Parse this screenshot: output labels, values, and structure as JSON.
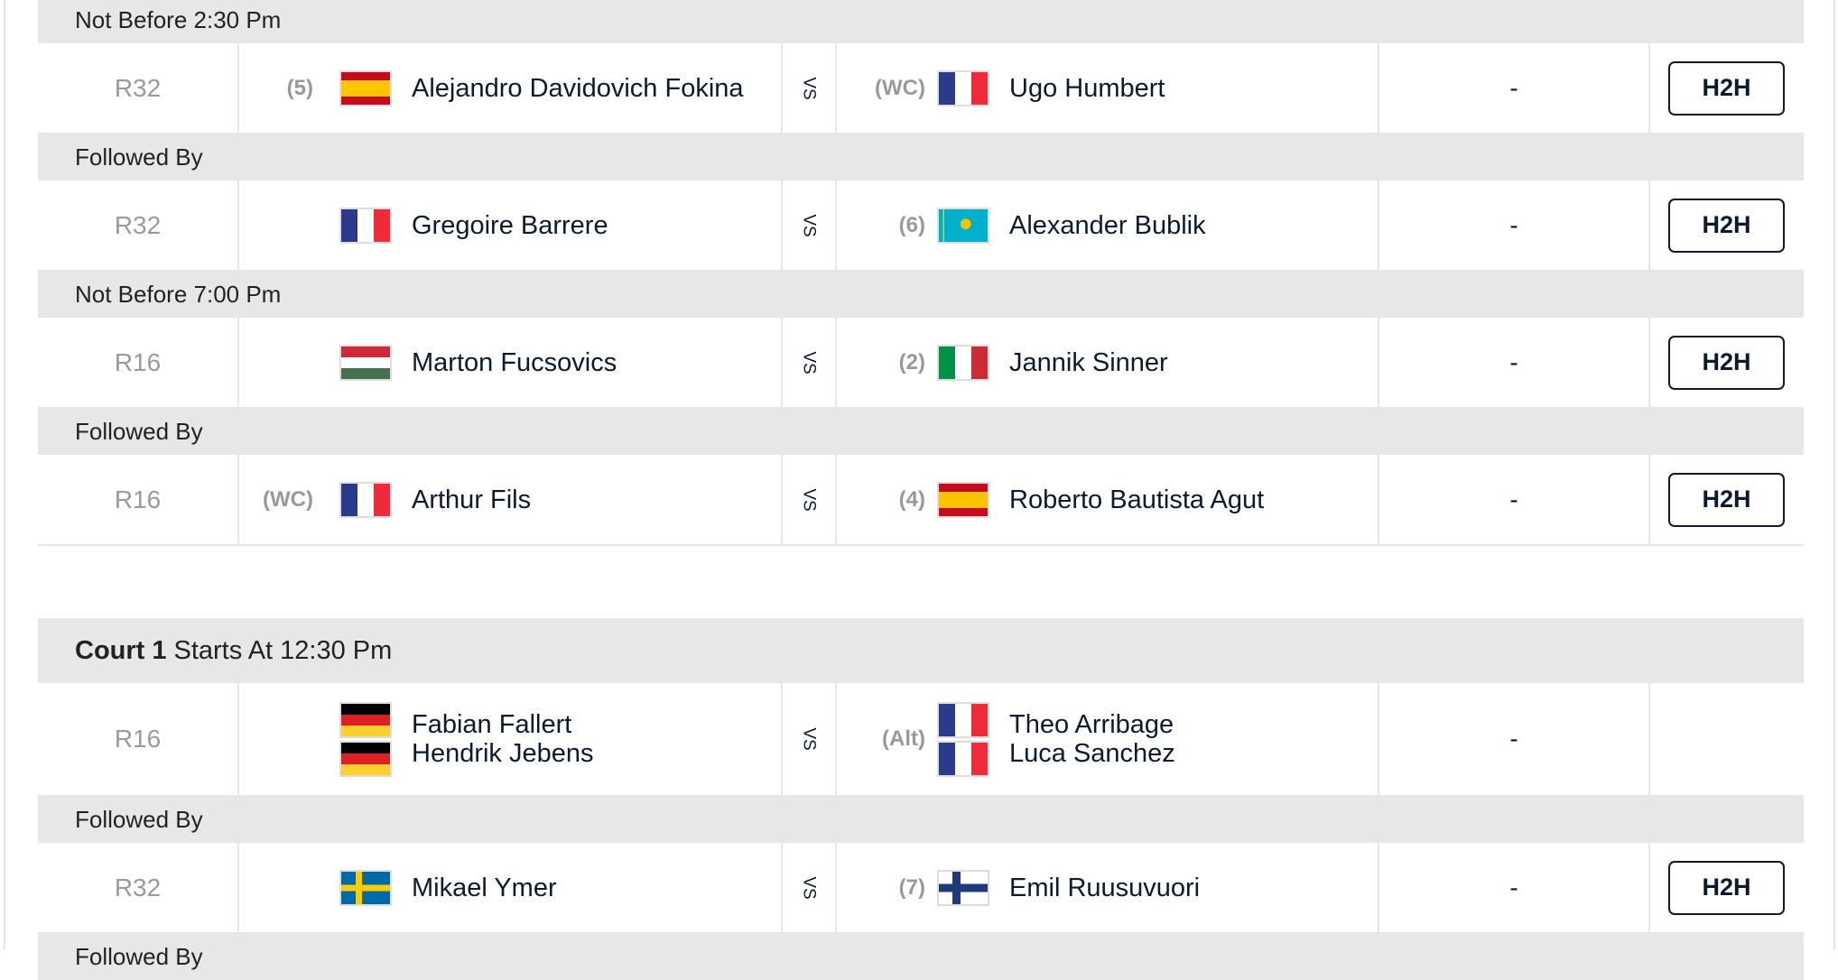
{
  "vs_label": "VS",
  "h2h_label": "H2H",
  "courts": [
    {
      "title_bold": "",
      "title": "",
      "blocks": [
        {
          "header": "Not Before 2:30 Pm",
          "match": {
            "round": "R32",
            "p1": {
              "seed": "(5)",
              "players": [
                {
                  "name": "Alejandro Davidovich Fokina",
                  "flag": "spain"
                }
              ]
            },
            "p2": {
              "seed": "(WC)",
              "players": [
                {
                  "name": "Ugo Humbert",
                  "flag": "france"
                }
              ]
            },
            "score": "-",
            "h2h": true
          }
        },
        {
          "header": "Followed By",
          "match": {
            "round": "R32",
            "p1": {
              "seed": "",
              "players": [
                {
                  "name": "Gregoire Barrere",
                  "flag": "france"
                }
              ]
            },
            "p2": {
              "seed": "(6)",
              "players": [
                {
                  "name": "Alexander Bublik",
                  "flag": "kazakhstan"
                }
              ]
            },
            "score": "-",
            "h2h": true
          }
        },
        {
          "header": "Not Before 7:00 Pm",
          "match": {
            "round": "R16",
            "p1": {
              "seed": "",
              "players": [
                {
                  "name": "Marton Fucsovics",
                  "flag": "hungary"
                }
              ]
            },
            "p2": {
              "seed": "(2)",
              "players": [
                {
                  "name": "Jannik Sinner",
                  "flag": "italy"
                }
              ]
            },
            "score": "-",
            "h2h": true
          }
        },
        {
          "header": "Followed By",
          "match": {
            "round": "R16",
            "p1": {
              "seed": "(WC)",
              "players": [
                {
                  "name": "Arthur Fils",
                  "flag": "france"
                }
              ]
            },
            "p2": {
              "seed": "(4)",
              "players": [
                {
                  "name": "Roberto Bautista Agut",
                  "flag": "spain"
                }
              ]
            },
            "score": "-",
            "h2h": true
          }
        }
      ]
    },
    {
      "title_bold": "Court 1",
      "title": "Starts At 12:30 Pm",
      "blocks": [
        {
          "header": "",
          "match": {
            "round": "R16",
            "p1": {
              "seed": "",
              "players": [
                {
                  "name": "Fabian Fallert",
                  "flag": "germany"
                },
                {
                  "name": "Hendrik Jebens",
                  "flag": "germany"
                }
              ]
            },
            "p2": {
              "seed": "(Alt)",
              "players": [
                {
                  "name": "Theo Arribage",
                  "flag": "france"
                },
                {
                  "name": "Luca Sanchez",
                  "flag": "france"
                }
              ]
            },
            "score": "-",
            "h2h": false
          }
        },
        {
          "header": "Followed By",
          "match": {
            "round": "R32",
            "p1": {
              "seed": "",
              "players": [
                {
                  "name": "Mikael Ymer",
                  "flag": "sweden"
                }
              ]
            },
            "p2": {
              "seed": "(7)",
              "players": [
                {
                  "name": "Emil Ruusuvuori",
                  "flag": "finland"
                }
              ]
            },
            "score": "-",
            "h2h": true
          }
        },
        {
          "header": "Followed By",
          "match": null
        }
      ]
    }
  ]
}
